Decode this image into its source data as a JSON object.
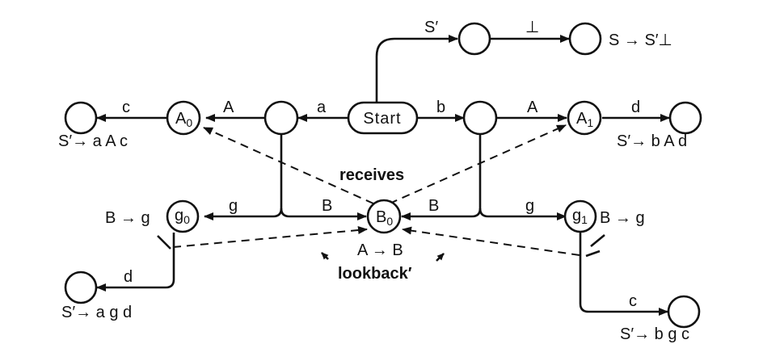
{
  "nodes": {
    "start": "Start",
    "A0": {
      "main": "A",
      "sub": "0"
    },
    "A1": {
      "main": "A",
      "sub": "1"
    },
    "B0": {
      "main": "B",
      "sub": "0"
    },
    "g0": {
      "main": "g",
      "sub": "0"
    },
    "g1": {
      "main": "g",
      "sub": "1"
    }
  },
  "edge_labels": {
    "s_prime": "S′",
    "bottom": "⊥",
    "a": "a",
    "b": "b",
    "A_left": "A",
    "A_right": "A",
    "c_left": "c",
    "d_right": "d",
    "g_left": "g",
    "g_right": "g",
    "B_left": "B",
    "B_right": "B",
    "d_lower": "d",
    "c_lower": "c"
  },
  "productions": {
    "s_s_prime_bottom": "S → S′⊥",
    "s_prime_aac": "S′→ a A c",
    "s_prime_bad": "S′→ b A d",
    "b_g_left": "B → g",
    "b_g_right": "B → g",
    "a_b": "A → B",
    "s_prime_agd": "S′→ a g d",
    "s_prime_bgc": "S′→ b g c"
  },
  "relations": {
    "receives": "receives",
    "lookback": "lookback′"
  }
}
